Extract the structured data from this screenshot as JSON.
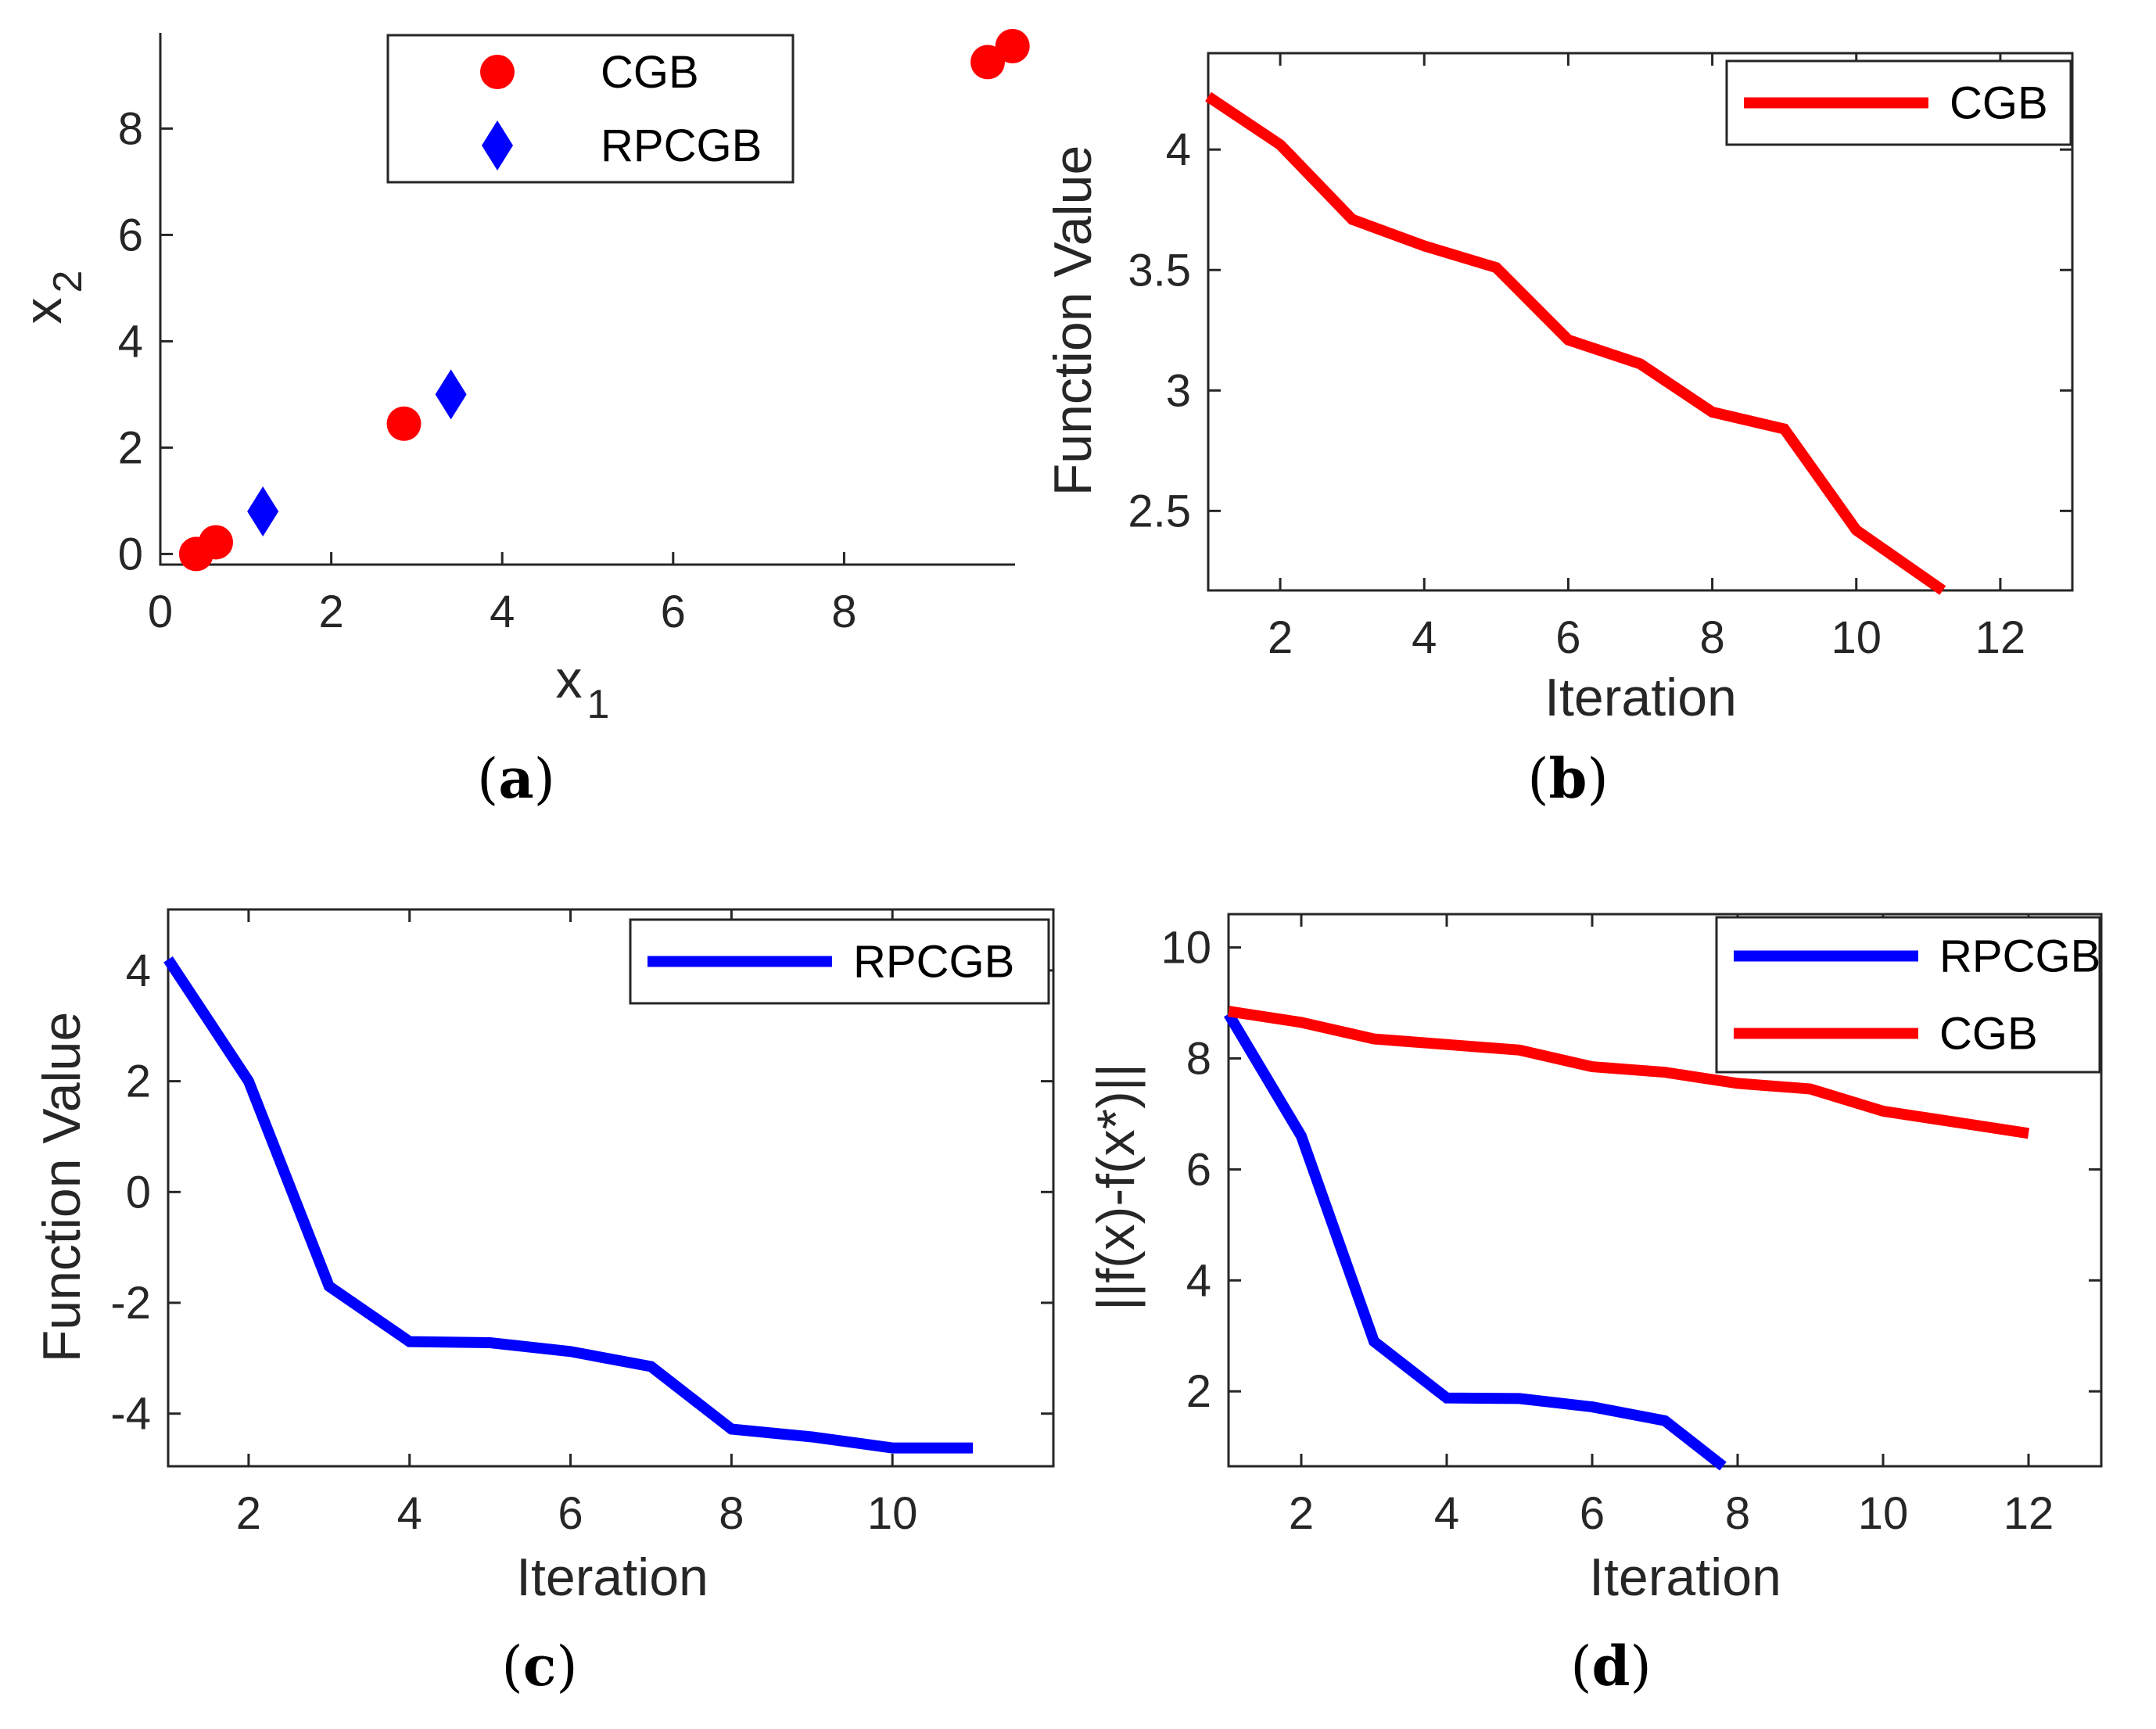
{
  "colors": {
    "CGB": "#ff0000",
    "RPCGB": "#0000ff",
    "axis": "#262626"
  },
  "chart_data": [
    {
      "id": "a",
      "caption": "(a)",
      "type": "scatter",
      "xlabel": "x",
      "xlabel_sub": "1",
      "ylabel": "x",
      "ylabel_sub": "2",
      "xlim": [
        0,
        10
      ],
      "ylim": [
        -0.2,
        9.8
      ],
      "xticks": [
        0,
        2,
        4,
        6,
        8
      ],
      "yticks": [
        0,
        2,
        4,
        6,
        8
      ],
      "grid": false,
      "legend": {
        "position": "top-center",
        "entries": [
          "CGB",
          "RPCGB"
        ]
      },
      "series": [
        {
          "name": "CGB",
          "marker": "circle",
          "points": [
            [
              0.42,
              0.0
            ],
            [
              0.65,
              0.22
            ],
            [
              2.85,
              2.45
            ],
            [
              9.68,
              9.25
            ],
            [
              9.97,
              9.55
            ]
          ]
        },
        {
          "name": "RPCGB",
          "marker": "diamond",
          "points": [
            [
              1.2,
              0.8
            ],
            [
              3.4,
              3.0
            ]
          ]
        }
      ]
    },
    {
      "id": "b",
      "caption": "(b)",
      "type": "line",
      "xlabel": "Iteration",
      "ylabel": "Function Value",
      "xlim": [
        1,
        13
      ],
      "ylim": [
        2.17,
        4.4
      ],
      "xticks": [
        2,
        4,
        6,
        8,
        10,
        12
      ],
      "yticks": [
        2.5,
        3,
        3.5,
        4
      ],
      "ytick_labels": [
        "2.5",
        "3",
        "3.5",
        "4"
      ],
      "grid": false,
      "legend": {
        "position": "top-right",
        "entries": [
          "CGB"
        ]
      },
      "series": [
        {
          "name": "CGB",
          "x": [
            1,
            2,
            3,
            4,
            5,
            6,
            7,
            8,
            9,
            10,
            11.2
          ],
          "y": [
            4.22,
            4.02,
            3.71,
            3.6,
            3.51,
            3.21,
            3.11,
            2.91,
            2.84,
            2.42,
            2.17
          ]
        }
      ]
    },
    {
      "id": "c",
      "caption": "(c)",
      "type": "line",
      "xlabel": "Iteration",
      "ylabel": "Function Value",
      "xlim": [
        1,
        12
      ],
      "ylim": [
        -4.95,
        5.1
      ],
      "xticks": [
        2,
        4,
        6,
        8,
        10
      ],
      "yticks": [
        -4,
        -2,
        0,
        2,
        4
      ],
      "ytick_labels": [
        "-4",
        "-2",
        "0",
        "2",
        "4"
      ],
      "grid": false,
      "legend": {
        "position": "top-right",
        "entries": [
          "RPCGB"
        ]
      },
      "series": [
        {
          "name": "RPCGB",
          "x": [
            1,
            2,
            3,
            4,
            5,
            6,
            7,
            8,
            9,
            10,
            11
          ],
          "y": [
            4.2,
            2.0,
            -1.7,
            -2.7,
            -2.72,
            -2.88,
            -3.15,
            -4.28,
            -4.42,
            -4.62,
            -4.62
          ]
        }
      ]
    },
    {
      "id": "d",
      "caption": "(d)",
      "type": "line",
      "xlabel": "Iteration",
      "ylabel": "||f(x)-f(x*)||",
      "xlim": [
        1,
        13
      ],
      "ylim": [
        0.65,
        10.6
      ],
      "xticks": [
        2,
        4,
        6,
        8,
        10,
        12
      ],
      "yticks": [
        2,
        4,
        6,
        8,
        10
      ],
      "ytick_labels": [
        "2",
        "4",
        "6",
        "8",
        "10"
      ],
      "grid": false,
      "legend": {
        "position": "top-right",
        "entries": [
          "RPCGB",
          "CGB"
        ]
      },
      "series": [
        {
          "name": "RPCGB",
          "x": [
            1,
            2,
            3,
            4,
            5,
            6,
            7,
            7.8
          ],
          "y": [
            8.8,
            6.6,
            2.9,
            1.88,
            1.87,
            1.72,
            1.47,
            0.65
          ]
        },
        {
          "name": "CGB",
          "x": [
            1,
            2,
            3,
            4,
            5,
            6,
            7,
            8,
            9,
            10,
            11,
            12
          ],
          "y": [
            8.85,
            8.65,
            8.35,
            8.25,
            8.15,
            7.85,
            7.75,
            7.55,
            7.45,
            7.05,
            6.85,
            6.65
          ]
        }
      ]
    }
  ]
}
